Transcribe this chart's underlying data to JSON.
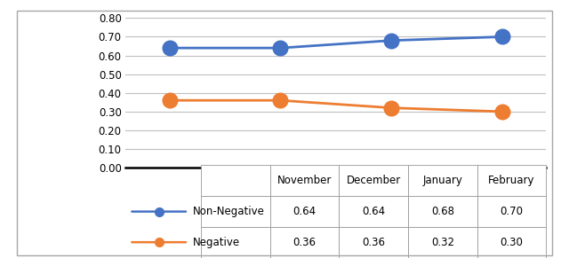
{
  "months": [
    "November",
    "December",
    "January",
    "February"
  ],
  "non_negative": [
    0.64,
    0.64,
    0.68,
    0.7
  ],
  "negative": [
    0.36,
    0.36,
    0.32,
    0.3
  ],
  "non_negative_color": "#4472C4",
  "negative_color": "#ED7D31",
  "ylim": [
    0.0,
    0.8
  ],
  "yticks": [
    0.0,
    0.1,
    0.2,
    0.3,
    0.4,
    0.5,
    0.6,
    0.7,
    0.8
  ],
  "ytick_labels": [
    "0.00",
    "0.10",
    "0.20",
    "0.30",
    "0.40",
    "0.50",
    "0.60",
    "0.70",
    "0.80"
  ],
  "legend_non_negative": "Non-Negative",
  "legend_negative": "Negative",
  "marker_size": 12,
  "line_width": 2.0,
  "background_color": "#ffffff",
  "grid_color": "#bfbfbf",
  "border_color": "#a6a6a6"
}
